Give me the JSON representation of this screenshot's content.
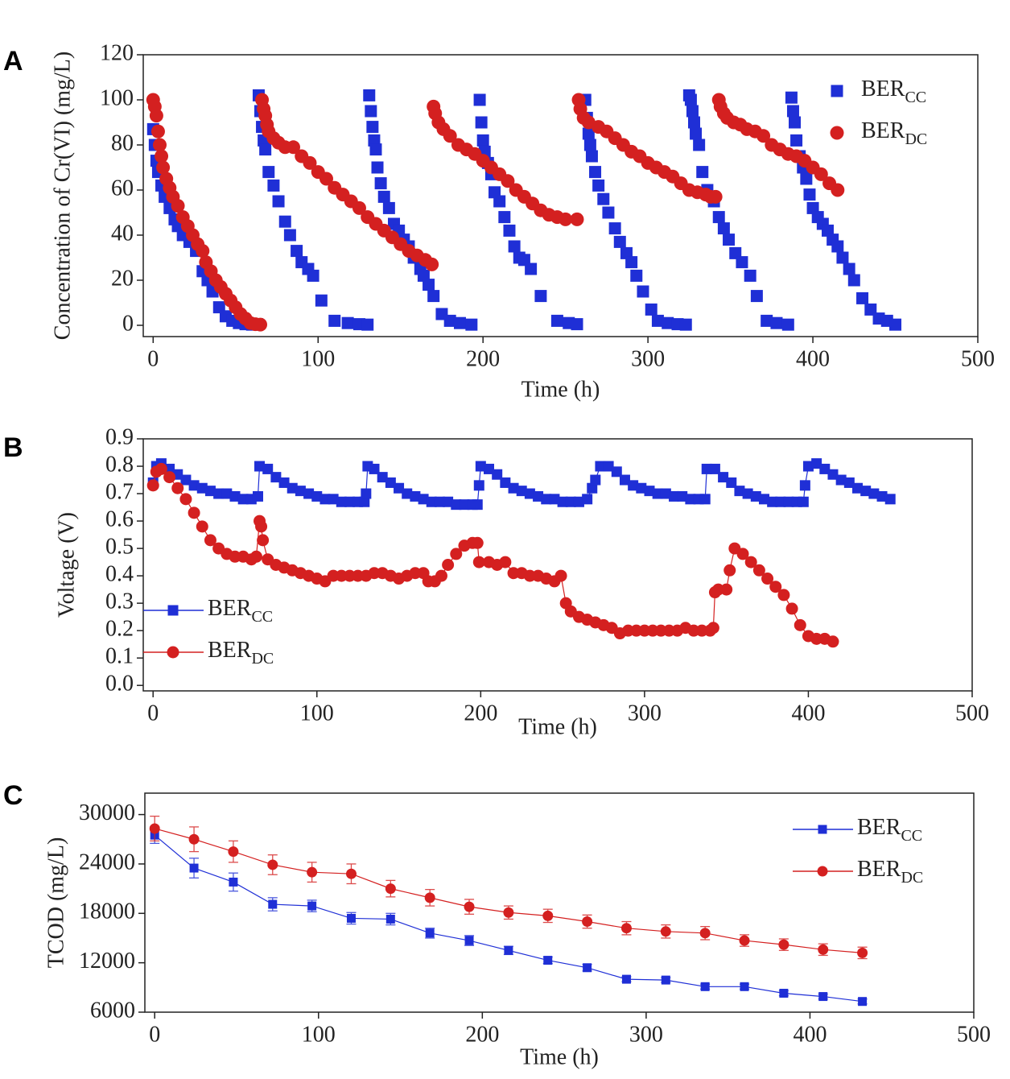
{
  "chart_data": [
    {
      "type": "scatter",
      "panel": "A",
      "x_label": "Time (h)",
      "y_label": "Concentration of Cr(VI) (mg/L)",
      "xlim": [
        -6,
        500
      ],
      "xticks": [
        0,
        100,
        200,
        300,
        400,
        500
      ],
      "ylim": [
        -5,
        120
      ],
      "yticks": [
        0,
        20,
        40,
        60,
        80,
        100,
        120
      ],
      "legend": "upper right",
      "series": [
        {
          "name": "BER",
          "name_sub": "CC",
          "color": "#1f2fd6",
          "marker": "square",
          "x": [
            0,
            1,
            2,
            3,
            5,
            7,
            10,
            13,
            15,
            18,
            22,
            26,
            30,
            33,
            36,
            40,
            44,
            48,
            52,
            56,
            60,
            63,
            64,
            65,
            66,
            67,
            68,
            70,
            73,
            76,
            80,
            83,
            87,
            90,
            94,
            97,
            102,
            110,
            118,
            125,
            130,
            131,
            132,
            133,
            134,
            135,
            136,
            138,
            140,
            143,
            146,
            149,
            152,
            155,
            158,
            162,
            164,
            167,
            170,
            175,
            180,
            186,
            193,
            198,
            199,
            200,
            201,
            203,
            205,
            207,
            210,
            213,
            216,
            219,
            222,
            225,
            229,
            235,
            245,
            252,
            257,
            262,
            263,
            264,
            265,
            266,
            268,
            270,
            273,
            276,
            280,
            283,
            287,
            290,
            293,
            297,
            302,
            306,
            312,
            318,
            323,
            325,
            326,
            327,
            328,
            329,
            331,
            333,
            336,
            340,
            343,
            346,
            349,
            353,
            357,
            362,
            366,
            372,
            378,
            385,
            387,
            388,
            389,
            390,
            392,
            394,
            396,
            398,
            400,
            403,
            406,
            409,
            412,
            415,
            418,
            422,
            425,
            430,
            435,
            440,
            445,
            450
          ],
          "values": [
            87,
            80,
            73,
            68,
            62,
            57,
            52,
            47,
            44,
            40,
            37,
            33,
            24,
            20,
            15,
            8,
            4,
            2,
            1,
            0.5,
            0.3,
            0.5,
            102,
            95,
            88,
            82,
            78,
            68,
            62,
            55,
            46,
            40,
            33,
            28,
            25,
            22,
            11,
            2,
            1,
            0.5,
            0.3,
            102,
            95,
            88,
            82,
            78,
            70,
            63,
            57,
            52,
            45,
            42,
            38,
            35,
            30,
            25,
            22,
            18,
            13,
            5,
            2,
            1,
            0.3,
            100,
            90,
            82,
            77,
            72,
            67,
            59,
            55,
            48,
            42,
            35,
            30,
            29,
            25,
            13,
            2,
            1,
            0.5,
            100,
            92,
            85,
            80,
            75,
            68,
            62,
            56,
            50,
            43,
            37,
            32,
            28,
            22,
            15,
            7,
            2,
            1,
            0.5,
            0.3,
            102,
            100,
            95,
            90,
            85,
            80,
            68,
            60,
            55,
            48,
            43,
            38,
            32,
            28,
            22,
            13,
            2,
            1,
            0.3,
            101,
            95,
            90,
            82,
            75,
            70,
            65,
            58,
            52,
            48,
            45,
            42,
            38,
            35,
            30,
            25,
            20,
            12,
            7,
            3,
            2,
            0.3
          ]
        },
        {
          "name": "BER",
          "name_sub": "DC",
          "color": "#d42020",
          "marker": "circle",
          "x": [
            0,
            1,
            2,
            3,
            4,
            5,
            6,
            8,
            10,
            12,
            15,
            18,
            21,
            24,
            27,
            30,
            32,
            35,
            38,
            41,
            44,
            47,
            50,
            53,
            56,
            59,
            62,
            65,
            66,
            67,
            68,
            69,
            70,
            73,
            76,
            80,
            85,
            90,
            95,
            100,
            105,
            110,
            115,
            120,
            125,
            130,
            135,
            140,
            145,
            150,
            155,
            160,
            165,
            169,
            170,
            171,
            173,
            176,
            180,
            185,
            190,
            195,
            200,
            205,
            210,
            215,
            220,
            225,
            230,
            235,
            240,
            245,
            250,
            257,
            258,
            259,
            261,
            264,
            270,
            275,
            280,
            285,
            290,
            295,
            300,
            305,
            310,
            315,
            320,
            325,
            330,
            335,
            338,
            341,
            343,
            344,
            346,
            348,
            352,
            356,
            360,
            365,
            370,
            375,
            380,
            385,
            390,
            395,
            400,
            405,
            410,
            415
          ],
          "values": [
            100,
            97,
            93,
            86,
            80,
            75,
            70,
            65,
            61,
            57,
            53,
            48,
            44,
            40,
            36,
            33,
            28,
            24,
            20,
            17,
            14,
            11,
            8,
            5,
            3,
            1,
            0.5,
            0.3,
            100,
            96,
            93,
            89,
            86,
            83,
            81,
            79,
            79,
            75,
            72,
            68,
            65,
            61,
            58,
            55,
            52,
            48,
            45,
            42,
            39,
            36,
            33,
            31,
            29,
            27,
            97,
            94,
            90,
            87,
            84,
            80,
            78,
            76,
            73,
            70,
            67,
            64,
            60,
            57,
            54,
            51,
            49,
            48,
            47,
            47,
            100,
            96,
            92,
            90,
            88,
            86,
            83,
            80,
            77,
            75,
            72,
            70,
            68,
            66,
            63,
            60,
            59,
            58,
            57,
            57,
            100,
            97,
            94,
            92,
            90,
            89,
            87,
            86,
            84,
            80,
            78,
            76,
            75,
            73,
            70,
            67,
            63,
            60
          ]
        }
      ]
    },
    {
      "type": "line",
      "panel": "B",
      "x_label": "Time (h)",
      "y_label": "Voltage (V)",
      "xlim": [
        -6,
        500
      ],
      "xticks": [
        0,
        100,
        200,
        300,
        400,
        500
      ],
      "ylim": [
        -0.02,
        0.9
      ],
      "yticks": [
        {
          "value": 0,
          "label": "0.0"
        },
        0.1,
        0.2,
        0.3,
        0.4,
        0.5,
        0.6,
        0.7,
        0.8,
        0.9
      ],
      "legend": "lower left",
      "series": [
        {
          "name": "BER",
          "name_sub": "CC",
          "color": "#1f2fd6",
          "marker": "square",
          "x": [
            0,
            2,
            5,
            10,
            15,
            20,
            25,
            30,
            35,
            40,
            45,
            50,
            55,
            60,
            64,
            65,
            70,
            75,
            80,
            85,
            90,
            95,
            100,
            105,
            110,
            115,
            120,
            125,
            129,
            130,
            131,
            135,
            140,
            145,
            150,
            155,
            160,
            165,
            170,
            175,
            180,
            185,
            190,
            195,
            198,
            199,
            200,
            205,
            210,
            215,
            220,
            225,
            230,
            235,
            240,
            245,
            250,
            255,
            260,
            265,
            268,
            270,
            273,
            278,
            283,
            288,
            293,
            298,
            303,
            308,
            313,
            318,
            323,
            328,
            333,
            337,
            338,
            343,
            348,
            353,
            358,
            363,
            368,
            373,
            378,
            383,
            388,
            393,
            397,
            398,
            400,
            405,
            410,
            415,
            420,
            425,
            430,
            435,
            440,
            445,
            450
          ],
          "values": [
            0.74,
            0.8,
            0.81,
            0.79,
            0.77,
            0.75,
            0.73,
            0.72,
            0.71,
            0.7,
            0.7,
            0.69,
            0.68,
            0.68,
            0.69,
            0.8,
            0.79,
            0.76,
            0.74,
            0.72,
            0.71,
            0.7,
            0.69,
            0.68,
            0.68,
            0.67,
            0.67,
            0.67,
            0.67,
            0.7,
            0.8,
            0.79,
            0.76,
            0.74,
            0.72,
            0.7,
            0.69,
            0.68,
            0.67,
            0.67,
            0.67,
            0.66,
            0.66,
            0.66,
            0.66,
            0.73,
            0.8,
            0.79,
            0.77,
            0.74,
            0.72,
            0.71,
            0.7,
            0.69,
            0.68,
            0.68,
            0.67,
            0.67,
            0.67,
            0.68,
            0.72,
            0.75,
            0.8,
            0.8,
            0.78,
            0.75,
            0.73,
            0.72,
            0.71,
            0.7,
            0.7,
            0.69,
            0.69,
            0.68,
            0.68,
            0.68,
            0.79,
            0.79,
            0.76,
            0.74,
            0.71,
            0.7,
            0.69,
            0.68,
            0.67,
            0.67,
            0.67,
            0.67,
            0.67,
            0.73,
            0.8,
            0.81,
            0.79,
            0.77,
            0.75,
            0.74,
            0.72,
            0.71,
            0.7,
            0.69,
            0.68
          ]
        },
        {
          "name": "BER",
          "name_sub": "DC",
          "color": "#d42020",
          "marker": "circle",
          "x": [
            0,
            2,
            5,
            10,
            15,
            20,
            25,
            30,
            35,
            40,
            45,
            50,
            55,
            60,
            63,
            65,
            66,
            67,
            70,
            75,
            80,
            85,
            90,
            95,
            100,
            105,
            110,
            115,
            120,
            125,
            130,
            135,
            140,
            145,
            150,
            155,
            160,
            165,
            168,
            172,
            176,
            180,
            185,
            190,
            195,
            198,
            199,
            205,
            210,
            215,
            220,
            225,
            230,
            235,
            240,
            245,
            249,
            252,
            255,
            260,
            265,
            270,
            275,
            280,
            285,
            290,
            295,
            300,
            305,
            310,
            315,
            320,
            325,
            330,
            335,
            340,
            342,
            343,
            345,
            350,
            352,
            355,
            360,
            365,
            370,
            375,
            380,
            385,
            390,
            395,
            400,
            405,
            410,
            415
          ],
          "values": [
            0.73,
            0.78,
            0.79,
            0.76,
            0.72,
            0.68,
            0.63,
            0.58,
            0.53,
            0.5,
            0.48,
            0.47,
            0.47,
            0.46,
            0.47,
            0.6,
            0.58,
            0.53,
            0.46,
            0.44,
            0.43,
            0.42,
            0.41,
            0.4,
            0.39,
            0.38,
            0.4,
            0.4,
            0.4,
            0.4,
            0.4,
            0.41,
            0.41,
            0.4,
            0.39,
            0.4,
            0.41,
            0.41,
            0.38,
            0.38,
            0.4,
            0.44,
            0.48,
            0.51,
            0.52,
            0.52,
            0.45,
            0.45,
            0.44,
            0.45,
            0.41,
            0.41,
            0.4,
            0.4,
            0.39,
            0.38,
            0.4,
            0.3,
            0.27,
            0.25,
            0.24,
            0.23,
            0.22,
            0.21,
            0.19,
            0.2,
            0.2,
            0.2,
            0.2,
            0.2,
            0.2,
            0.2,
            0.21,
            0.2,
            0.2,
            0.2,
            0.21,
            0.34,
            0.35,
            0.35,
            0.42,
            0.5,
            0.48,
            0.45,
            0.42,
            0.39,
            0.36,
            0.33,
            0.28,
            0.22,
            0.18,
            0.17,
            0.17,
            0.16
          ]
        }
      ]
    },
    {
      "type": "line",
      "panel": "C",
      "x_label": "Time (h)",
      "y_label": "TCOD (mg/L)",
      "xlim": [
        -6,
        500
      ],
      "xticks": [
        0,
        100,
        200,
        300,
        400,
        500
      ],
      "ylim": [
        6000,
        32600
      ],
      "yticks": [
        6000,
        12000,
        18000,
        24000,
        30000
      ],
      "legend": "upper right",
      "x": [
        0,
        24,
        48,
        72,
        96,
        120,
        144,
        168,
        192,
        216,
        240,
        264,
        288,
        312,
        336,
        360,
        384,
        408,
        432
      ],
      "series": [
        {
          "name": "BER",
          "name_sub": "CC",
          "color": "#1f2fd6",
          "marker": "square",
          "values": [
            27500,
            23500,
            21800,
            19100,
            18900,
            17400,
            17300,
            15600,
            14700,
            13500,
            12300,
            11400,
            10000,
            9900,
            9100,
            9100,
            8300,
            7900,
            7300
          ],
          "errors": [
            1000,
            1200,
            1100,
            800,
            700,
            700,
            700,
            600,
            600,
            500,
            400,
            400,
            300,
            300,
            300,
            300,
            300,
            300,
            300
          ]
        },
        {
          "name": "BER",
          "name_sub": "DC",
          "color": "#d42020",
          "marker": "circle",
          "values": [
            28300,
            27000,
            25500,
            23900,
            23000,
            22800,
            21000,
            19900,
            18800,
            18100,
            17700,
            17000,
            16200,
            15800,
            15600,
            14700,
            14200,
            13600,
            13200
          ],
          "errors": [
            1500,
            1500,
            1300,
            1200,
            1200,
            1200,
            1000,
            1000,
            900,
            800,
            800,
            800,
            800,
            800,
            800,
            700,
            700,
            700,
            700
          ]
        }
      ]
    }
  ]
}
